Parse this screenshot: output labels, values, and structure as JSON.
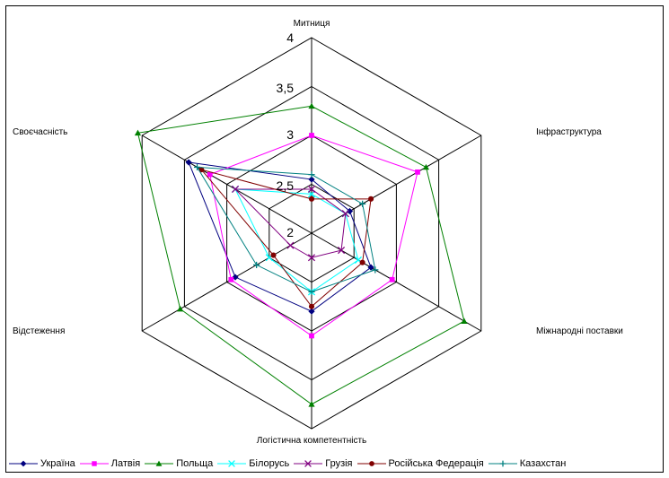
{
  "chart_data": {
    "type": "radar",
    "axes": [
      "Митниця",
      "Інфраструктура",
      "Міжнародні поставки",
      "Логістична компетентність",
      "Відстеження",
      "Своєчасність"
    ],
    "tick_labels": [
      "2",
      "2,5",
      "3",
      "3,5",
      "4"
    ],
    "range": [
      2,
      4
    ],
    "grid": true,
    "legend_position": "bottom",
    "series": [
      {
        "name": "Україна",
        "color": "#000080",
        "marker": "diamond",
        "values": [
          2.55,
          2.45,
          2.7,
          2.8,
          2.9,
          3.45
        ]
      },
      {
        "name": "Латвія",
        "color": "#ff00ff",
        "marker": "square",
        "values": [
          3.0,
          3.25,
          2.95,
          3.05,
          2.95,
          3.2
        ]
      },
      {
        "name": "Польща",
        "color": "#008000",
        "marker": "triangle",
        "values": [
          3.3,
          3.35,
          3.8,
          3.75,
          3.55,
          4.05
        ]
      },
      {
        "name": "Білорусь",
        "color": "#00ffff",
        "marker": "x",
        "values": [
          2.4,
          2.4,
          2.55,
          2.6,
          2.5,
          2.9
        ]
      },
      {
        "name": "Грузія",
        "color": "#800080",
        "marker": "x",
        "values": [
          2.45,
          2.4,
          2.35,
          2.25,
          2.25,
          2.9
        ]
      },
      {
        "name": "Російська Федерація",
        "color": "#800000",
        "marker": "circle",
        "values": [
          2.35,
          2.7,
          2.6,
          2.75,
          2.45,
          3.3
        ]
      },
      {
        "name": "Казахстан",
        "color": "#008080",
        "marker": "plus",
        "values": [
          2.6,
          2.6,
          2.75,
          2.6,
          2.65,
          3.35
        ]
      }
    ]
  }
}
